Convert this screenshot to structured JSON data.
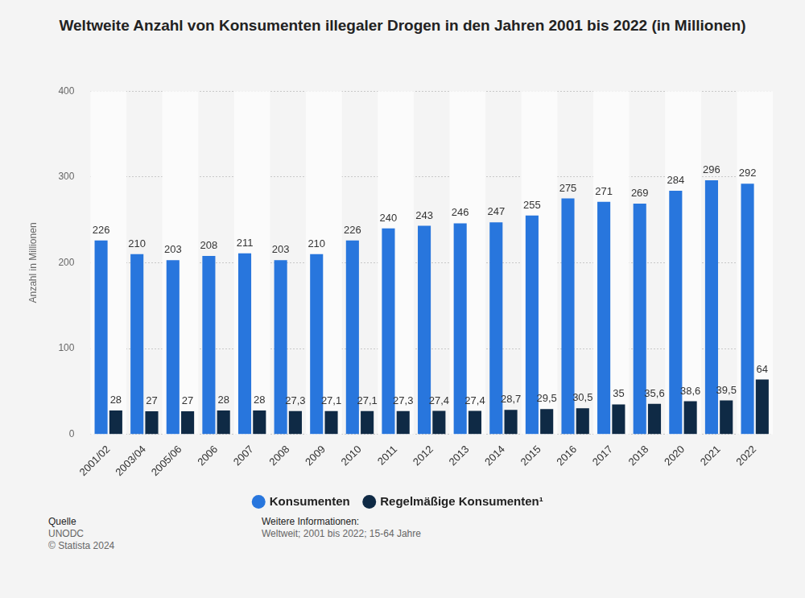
{
  "chart_data": {
    "type": "bar",
    "title": "Weltweite Anzahl von Konsumenten illegaler Drogen in den Jahren 2001 bis 2022 (in Millionen)",
    "y_label": "Anzahl in Millionen",
    "categories": [
      "2001/02",
      "2003/04",
      "2005/06",
      "2006",
      "2007",
      "2008",
      "2009",
      "2010",
      "2011",
      "2012",
      "2013",
      "2014",
      "2015",
      "2016",
      "2017",
      "2018",
      "2020",
      "2021",
      "2022"
    ],
    "series": [
      {
        "name": "Konsumenten",
        "color": "#2876dd",
        "values": [
          226,
          210,
          203,
          208,
          211,
          203,
          210,
          226,
          240,
          243,
          246,
          247,
          255,
          275,
          271,
          269,
          284,
          296,
          292
        ]
      },
      {
        "name": "Regelmäßige Konsumenten¹",
        "color": "#0f2a45",
        "values": [
          28,
          27,
          27,
          28,
          28,
          27.3,
          27.1,
          27.1,
          27.3,
          27.4,
          27.4,
          28.7,
          29.5,
          30.5,
          35,
          35.6,
          38.6,
          39.5,
          64
        ],
        "value_labels": [
          "28",
          "27",
          "27",
          "28",
          "28",
          "27,3",
          "27,1",
          "27,1",
          "27,3",
          "27,4",
          "27,4",
          "28,7",
          "29,5",
          "30,5",
          "35",
          "35,6",
          "38,6",
          "39,5",
          "64"
        ]
      }
    ],
    "ylim": [
      0,
      400
    ],
    "yticks": [
      0,
      100,
      200,
      300,
      400
    ],
    "grid": true,
    "legend": "bottom",
    "data_labels": true,
    "annotations": [
      {
        "heading": "Quelle",
        "lines": [
          "UNODC",
          "© Statista 2024"
        ]
      },
      {
        "heading": "Weitere Informationen:",
        "lines": [
          "Weltweit; 2001 bis 2022; 15-64 Jahre"
        ]
      }
    ]
  }
}
